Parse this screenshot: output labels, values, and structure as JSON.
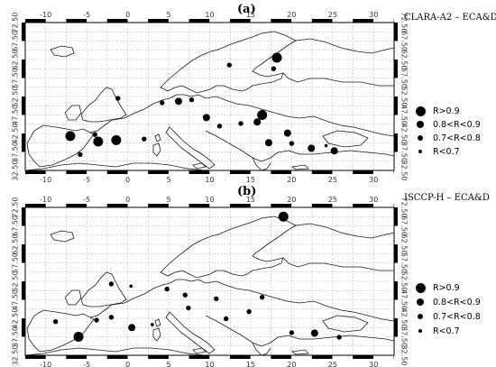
{
  "panels": [
    {
      "letter": "(a)",
      "title": "CLARA-A2 – ECA&D",
      "legend": [
        {
          "label": "R>0.9",
          "size": "large"
        },
        {
          "label": "0.8<R<0.9",
          "size": "medium"
        },
        {
          "label": "0.7<R<0.8",
          "size": "small"
        },
        {
          "label": "R<0.7",
          "size": "tiny"
        }
      ],
      "lon_ticks": [
        "-10",
        "-5",
        "0",
        "5",
        "10",
        "15",
        "20",
        "25",
        "30"
      ],
      "lat_ticks": [
        "32.50",
        "37.50",
        "42.50",
        "47.50",
        "52.50",
        "57.50",
        "62.50",
        "67.50",
        "72.50"
      ],
      "stations": [
        {
          "lon": -7.0,
          "lat": 41.8,
          "class": "large"
        },
        {
          "lon": -3.6,
          "lat": 40.3,
          "class": "large"
        },
        {
          "lon": -1.4,
          "lat": 40.7,
          "class": "large"
        },
        {
          "lon": -4.0,
          "lat": 42.2,
          "class": "small"
        },
        {
          "lon": -5.8,
          "lat": 36.8,
          "class": "small"
        },
        {
          "lon": 2.0,
          "lat": 41.0,
          "class": "small"
        },
        {
          "lon": 4.2,
          "lat": 50.8,
          "class": "small"
        },
        {
          "lon": 6.2,
          "lat": 51.2,
          "class": "medium"
        },
        {
          "lon": 7.8,
          "lat": 51.6,
          "class": "small"
        },
        {
          "lon": 9.6,
          "lat": 46.8,
          "class": "medium"
        },
        {
          "lon": 11.2,
          "lat": 44.5,
          "class": "small"
        },
        {
          "lon": 13.8,
          "lat": 45.2,
          "class": "small"
        },
        {
          "lon": 16.4,
          "lat": 47.5,
          "class": "large"
        },
        {
          "lon": 15.8,
          "lat": 45.6,
          "class": "medium"
        },
        {
          "lon": 18.2,
          "lat": 63.0,
          "class": "large"
        },
        {
          "lon": 12.4,
          "lat": 61.0,
          "class": "small"
        },
        {
          "lon": 17.8,
          "lat": 60.0,
          "class": "small"
        },
        {
          "lon": 17.2,
          "lat": 40.0,
          "class": "medium"
        },
        {
          "lon": 19.5,
          "lat": 42.6,
          "class": "medium"
        },
        {
          "lon": 20.0,
          "lat": 39.8,
          "class": "small"
        },
        {
          "lon": 22.4,
          "lat": 38.5,
          "class": "medium"
        },
        {
          "lon": 24.2,
          "lat": 39.2,
          "class": "tiny"
        },
        {
          "lon": 25.2,
          "lat": 37.8,
          "class": "medium"
        },
        {
          "lon": -1.2,
          "lat": 52.0,
          "class": "small"
        }
      ]
    },
    {
      "letter": "(b)",
      "title": "ISCCP-H – ECA&D",
      "legend": [
        {
          "label": "R>0.9",
          "size": "large"
        },
        {
          "label": "0.8<R<0.9",
          "size": "medium"
        },
        {
          "label": "0.7<R<0.8",
          "size": "small"
        },
        {
          "label": "R<0.7",
          "size": "tiny"
        }
      ],
      "lon_ticks": [
        "-10",
        "-5",
        "0",
        "5",
        "10",
        "15",
        "20",
        "25",
        "30"
      ],
      "lat_ticks": [
        "32.50",
        "37.50",
        "42.50",
        "47.50",
        "52.50",
        "57.50",
        "62.50",
        "67.50",
        "72.50"
      ],
      "stations": [
        {
          "lon": -6.0,
          "lat": 37.5,
          "class": "large"
        },
        {
          "lon": -8.8,
          "lat": 41.6,
          "class": "small"
        },
        {
          "lon": -3.8,
          "lat": 42.0,
          "class": "small"
        },
        {
          "lon": -2.0,
          "lat": 42.8,
          "class": "small"
        },
        {
          "lon": 0.5,
          "lat": 40.0,
          "class": "medium"
        },
        {
          "lon": 3.0,
          "lat": 40.8,
          "class": "tiny"
        },
        {
          "lon": -2.0,
          "lat": 51.8,
          "class": "small"
        },
        {
          "lon": 0.4,
          "lat": 51.2,
          "class": "tiny"
        },
        {
          "lon": 4.8,
          "lat": 50.4,
          "class": "small"
        },
        {
          "lon": 7.0,
          "lat": 48.8,
          "class": "small"
        },
        {
          "lon": 7.4,
          "lat": 45.3,
          "class": "small"
        },
        {
          "lon": 10.8,
          "lat": 47.8,
          "class": "small"
        },
        {
          "lon": 12.0,
          "lat": 42.4,
          "class": "small"
        },
        {
          "lon": 14.8,
          "lat": 44.3,
          "class": "small"
        },
        {
          "lon": 16.4,
          "lat": 48.2,
          "class": "small"
        },
        {
          "lon": 19.0,
          "lat": 70.0,
          "class": "large"
        },
        {
          "lon": 20.0,
          "lat": 38.6,
          "class": "small"
        },
        {
          "lon": 22.8,
          "lat": 38.5,
          "class": "medium"
        },
        {
          "lon": 25.8,
          "lat": 37.4,
          "class": "small"
        }
      ]
    }
  ],
  "colors": {
    "dots": "#000000",
    "coast": "#1a1a1a",
    "grid": "#9a9a9a",
    "frame": "#000000"
  }
}
